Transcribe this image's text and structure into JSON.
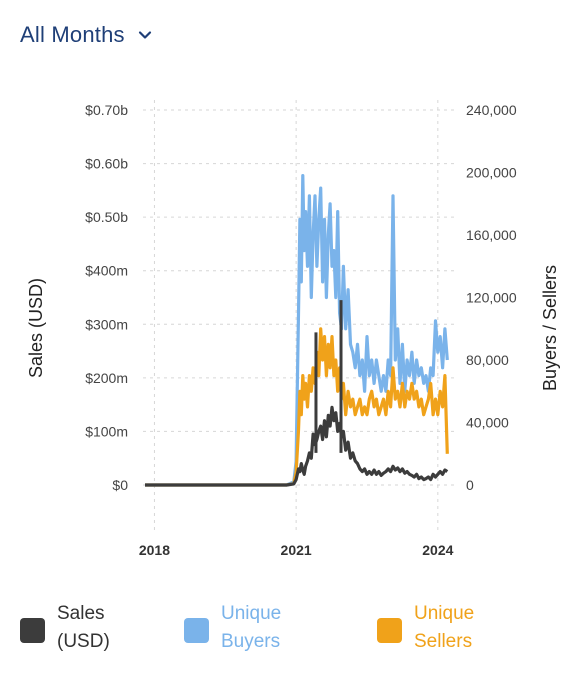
{
  "filter": {
    "label": "All Months",
    "icon": "chevron-down-icon"
  },
  "chart_data": {
    "type": "line",
    "y_left": {
      "label": "Sales (USD)",
      "ticks": [
        "$0",
        "$100m",
        "$200m",
        "$300m",
        "$400m",
        "$0.50b",
        "$0.60b",
        "$0.70b"
      ],
      "range": [
        0,
        700
      ]
    },
    "y_right": {
      "label": "Buyers / Sellers",
      "ticks": [
        "0",
        "40,000",
        "80,000",
        "120,000",
        "160,000",
        "200,000",
        "240,000"
      ],
      "range": [
        0,
        240000
      ]
    },
    "x": {
      "ticks": [
        "2018",
        "2021",
        "2024"
      ],
      "range": [
        2017.8,
        2024.3
      ]
    },
    "grid": true,
    "legend_position": "bottom",
    "series": [
      {
        "name": "Unique Buyers",
        "axis": "right",
        "color": "#7ab3ea",
        "points": [
          [
            2017.8,
            0
          ],
          [
            2020.8,
            0
          ],
          [
            2020.95,
            2000
          ],
          [
            2021.0,
            15000
          ],
          [
            2021.05,
            110000
          ],
          [
            2021.08,
            170000
          ],
          [
            2021.11,
            130000
          ],
          [
            2021.14,
            198000
          ],
          [
            2021.17,
            150000
          ],
          [
            2021.2,
            175000
          ],
          [
            2021.24,
            140000
          ],
          [
            2021.28,
            185000
          ],
          [
            2021.32,
            120000
          ],
          [
            2021.36,
            160000
          ],
          [
            2021.4,
            185000
          ],
          [
            2021.44,
            140000
          ],
          [
            2021.48,
            170000
          ],
          [
            2021.52,
            190000
          ],
          [
            2021.56,
            130000
          ],
          [
            2021.6,
            170000
          ],
          [
            2021.64,
            120000
          ],
          [
            2021.68,
            160000
          ],
          [
            2021.72,
            180000
          ],
          [
            2021.76,
            140000
          ],
          [
            2021.8,
            150000
          ],
          [
            2021.84,
            120000
          ],
          [
            2021.88,
            175000
          ],
          [
            2021.92,
            110000
          ],
          [
            2021.96,
            100000
          ],
          [
            2022.0,
            140000
          ],
          [
            2022.05,
            100000
          ],
          [
            2022.1,
            125000
          ],
          [
            2022.15,
            90000
          ],
          [
            2022.2,
            85000
          ],
          [
            2022.25,
            75000
          ],
          [
            2022.3,
            90000
          ],
          [
            2022.35,
            70000
          ],
          [
            2022.4,
            80000
          ],
          [
            2022.45,
            60000
          ],
          [
            2022.5,
            95000
          ],
          [
            2022.55,
            70000
          ],
          [
            2022.6,
            80000
          ],
          [
            2022.65,
            65000
          ],
          [
            2022.7,
            80000
          ],
          [
            2022.75,
            70000
          ],
          [
            2022.8,
            60000
          ],
          [
            2022.85,
            70000
          ],
          [
            2022.9,
            60000
          ],
          [
            2022.95,
            80000
          ],
          [
            2023.0,
            70000
          ],
          [
            2023.05,
            185000
          ],
          [
            2023.1,
            80000
          ],
          [
            2023.15,
            100000
          ],
          [
            2023.2,
            65000
          ],
          [
            2023.25,
            90000
          ],
          [
            2023.3,
            60000
          ],
          [
            2023.35,
            80000
          ],
          [
            2023.4,
            70000
          ],
          [
            2023.45,
            85000
          ],
          [
            2023.5,
            65000
          ],
          [
            2023.55,
            80000
          ],
          [
            2023.6,
            70000
          ],
          [
            2023.65,
            75000
          ],
          [
            2023.7,
            65000
          ],
          [
            2023.75,
            70000
          ],
          [
            2023.8,
            60000
          ],
          [
            2023.85,
            75000
          ],
          [
            2023.9,
            70000
          ],
          [
            2023.95,
            105000
          ],
          [
            2024.0,
            85000
          ],
          [
            2024.05,
            95000
          ],
          [
            2024.1,
            75000
          ],
          [
            2024.15,
            100000
          ],
          [
            2024.2,
            80000
          ]
        ]
      },
      {
        "name": "Unique Sellers",
        "axis": "right",
        "color": "#f0a21a",
        "points": [
          [
            2017.8,
            0
          ],
          [
            2020.8,
            0
          ],
          [
            2020.95,
            1000
          ],
          [
            2021.0,
            8000
          ],
          [
            2021.05,
            35000
          ],
          [
            2021.08,
            60000
          ],
          [
            2021.11,
            45000
          ],
          [
            2021.14,
            70000
          ],
          [
            2021.17,
            55000
          ],
          [
            2021.2,
            65000
          ],
          [
            2021.24,
            50000
          ],
          [
            2021.28,
            70000
          ],
          [
            2021.32,
            60000
          ],
          [
            2021.36,
            75000
          ],
          [
            2021.4,
            65000
          ],
          [
            2021.44,
            85000
          ],
          [
            2021.48,
            70000
          ],
          [
            2021.52,
            100000
          ],
          [
            2021.56,
            80000
          ],
          [
            2021.6,
            95000
          ],
          [
            2021.64,
            70000
          ],
          [
            2021.68,
            90000
          ],
          [
            2021.72,
            75000
          ],
          [
            2021.76,
            95000
          ],
          [
            2021.8,
            70000
          ],
          [
            2021.84,
            80000
          ],
          [
            2021.88,
            60000
          ],
          [
            2021.92,
            75000
          ],
          [
            2021.96,
            55000
          ],
          [
            2022.0,
            65000
          ],
          [
            2022.05,
            45000
          ],
          [
            2022.1,
            60000
          ],
          [
            2022.15,
            50000
          ],
          [
            2022.2,
            55000
          ],
          [
            2022.25,
            45000
          ],
          [
            2022.3,
            50000
          ],
          [
            2022.35,
            55000
          ],
          [
            2022.4,
            45000
          ],
          [
            2022.45,
            50000
          ],
          [
            2022.5,
            45000
          ],
          [
            2022.55,
            55000
          ],
          [
            2022.6,
            60000
          ],
          [
            2022.65,
            50000
          ],
          [
            2022.7,
            55000
          ],
          [
            2022.75,
            45000
          ],
          [
            2022.8,
            50000
          ],
          [
            2022.85,
            55000
          ],
          [
            2022.9,
            45000
          ],
          [
            2022.95,
            60000
          ],
          [
            2023.0,
            50000
          ],
          [
            2023.05,
            75000
          ],
          [
            2023.1,
            55000
          ],
          [
            2023.15,
            60000
          ],
          [
            2023.2,
            50000
          ],
          [
            2023.25,
            65000
          ],
          [
            2023.3,
            50000
          ],
          [
            2023.35,
            60000
          ],
          [
            2023.4,
            55000
          ],
          [
            2023.45,
            65000
          ],
          [
            2023.5,
            55000
          ],
          [
            2023.55,
            60000
          ],
          [
            2023.6,
            50000
          ],
          [
            2023.65,
            55000
          ],
          [
            2023.7,
            45000
          ],
          [
            2023.75,
            50000
          ],
          [
            2023.8,
            55000
          ],
          [
            2023.85,
            65000
          ],
          [
            2023.9,
            45000
          ],
          [
            2023.95,
            55000
          ],
          [
            2024.0,
            45000
          ],
          [
            2024.05,
            60000
          ],
          [
            2024.1,
            50000
          ],
          [
            2024.15,
            70000
          ],
          [
            2024.2,
            20000
          ]
        ]
      },
      {
        "name": "Sales (USD)",
        "axis": "left",
        "color": "#3c3c3c",
        "points": [
          [
            2017.8,
            0
          ],
          [
            2020.8,
            0
          ],
          [
            2020.95,
            2
          ],
          [
            2021.0,
            10
          ],
          [
            2021.05,
            30
          ],
          [
            2021.08,
            25
          ],
          [
            2021.11,
            40
          ],
          [
            2021.14,
            28
          ],
          [
            2021.17,
            20
          ],
          [
            2021.2,
            35
          ],
          [
            2021.24,
            45
          ],
          [
            2021.28,
            60
          ],
          [
            2021.32,
            50
          ],
          [
            2021.36,
            95
          ],
          [
            2021.4,
            75
          ],
          [
            2021.44,
            85
          ],
          [
            2021.48,
            100
          ],
          [
            2021.52,
            110
          ],
          [
            2021.56,
            85
          ],
          [
            2021.6,
            120
          ],
          [
            2021.64,
            90
          ],
          [
            2021.68,
            130
          ],
          [
            2021.72,
            110
          ],
          [
            2021.76,
            145
          ],
          [
            2021.8,
            120
          ],
          [
            2021.84,
            135
          ],
          [
            2021.88,
            100
          ],
          [
            2021.92,
            115
          ],
          [
            2021.96,
            90
          ],
          [
            2022.0,
            100
          ],
          [
            2022.05,
            65
          ],
          [
            2022.1,
            80
          ],
          [
            2022.15,
            50
          ],
          [
            2022.2,
            60
          ],
          [
            2022.25,
            45
          ],
          [
            2022.3,
            40
          ],
          [
            2022.35,
            30
          ],
          [
            2022.4,
            25
          ],
          [
            2022.45,
            30
          ],
          [
            2022.5,
            20
          ],
          [
            2022.55,
            25
          ],
          [
            2022.6,
            20
          ],
          [
            2022.65,
            28
          ],
          [
            2022.7,
            20
          ],
          [
            2022.75,
            25
          ],
          [
            2022.8,
            18
          ],
          [
            2022.85,
            22
          ],
          [
            2022.9,
            25
          ],
          [
            2022.95,
            30
          ],
          [
            2023.0,
            25
          ],
          [
            2023.05,
            35
          ],
          [
            2023.1,
            28
          ],
          [
            2023.15,
            32
          ],
          [
            2023.2,
            25
          ],
          [
            2023.25,
            30
          ],
          [
            2023.3,
            22
          ],
          [
            2023.35,
            25
          ],
          [
            2023.4,
            20
          ],
          [
            2023.45,
            18
          ],
          [
            2023.5,
            15
          ],
          [
            2023.55,
            20
          ],
          [
            2023.6,
            12
          ],
          [
            2023.65,
            15
          ],
          [
            2023.7,
            10
          ],
          [
            2023.75,
            12
          ],
          [
            2023.8,
            15
          ],
          [
            2023.85,
            10
          ],
          [
            2023.9,
            20
          ],
          [
            2023.95,
            15
          ],
          [
            2024.0,
            20
          ],
          [
            2024.05,
            25
          ],
          [
            2024.1,
            20
          ],
          [
            2024.15,
            28
          ],
          [
            2024.2,
            25
          ]
        ]
      }
    ],
    "spikes": [
      {
        "series": "Sales (USD)",
        "x": 2021.42,
        "value": 285
      },
      {
        "series": "Sales (USD)",
        "x": 2021.95,
        "value": 345
      }
    ]
  },
  "legend": [
    {
      "label": "Sales\n(USD)",
      "color": "#3c3c3c",
      "text_color": "#333333"
    },
    {
      "label": "Unique\nBuyers",
      "color": "#7ab3ea",
      "text_color": "#7ab3ea"
    },
    {
      "label": "Unique\nSellers",
      "color": "#f0a21a",
      "text_color": "#f0a21a"
    }
  ]
}
